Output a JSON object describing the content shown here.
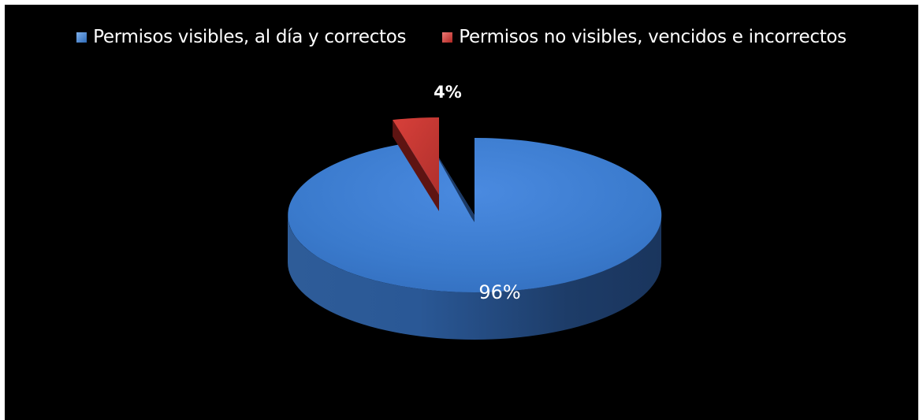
{
  "chart_data": {
    "type": "pie",
    "categories": [
      "Permisos visibles, al día y correctos",
      "Permisos no visibles, vencidos e incorrectos"
    ],
    "values": [
      96,
      4
    ],
    "data_labels": [
      "96%",
      "4%"
    ],
    "colors": [
      "#3a78c9",
      "#c0302c"
    ],
    "legend_position": "top",
    "exploded": [
      false,
      true
    ],
    "style": "3d"
  }
}
